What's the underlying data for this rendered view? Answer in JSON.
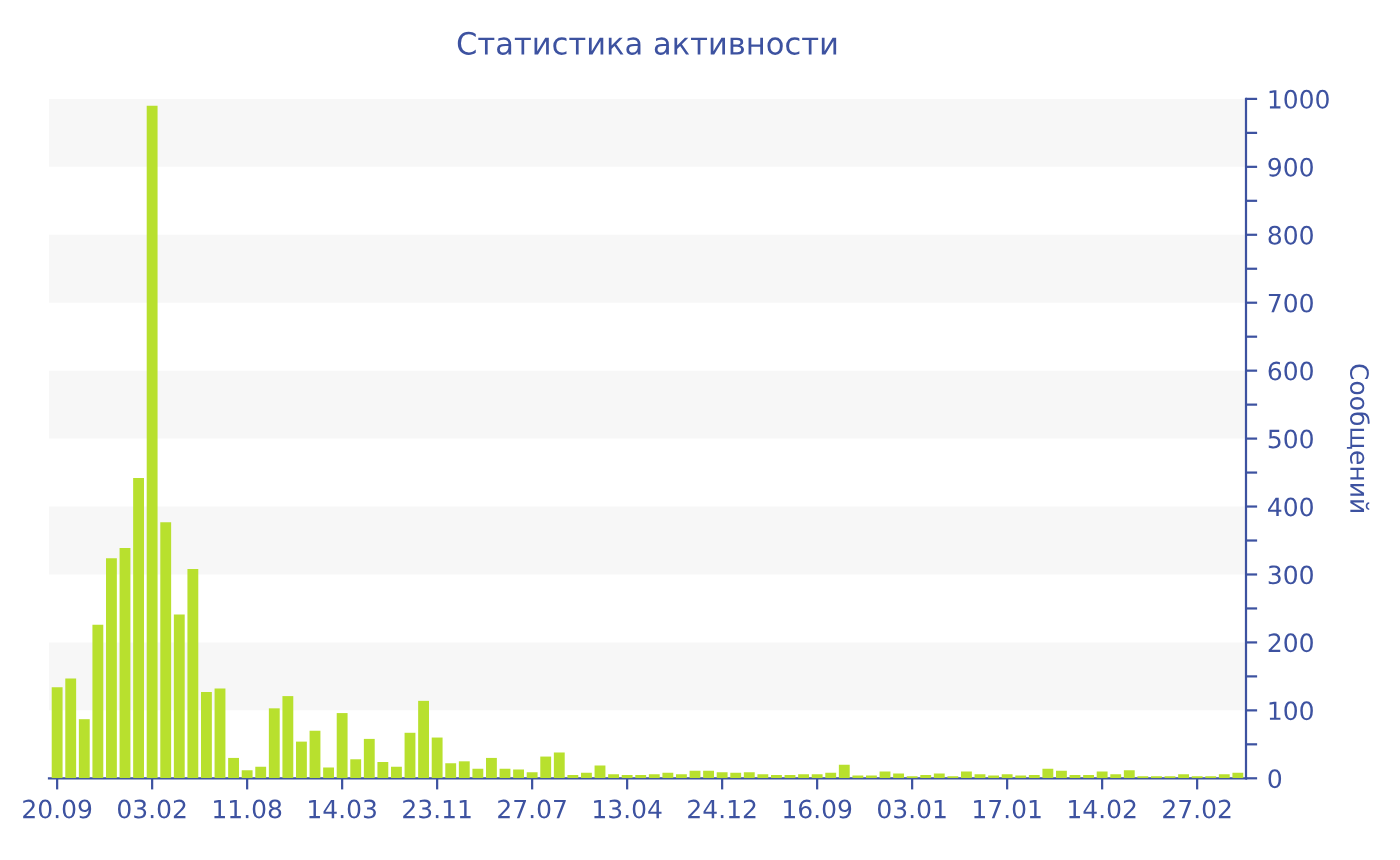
{
  "chart_data": {
    "type": "bar",
    "title": "Статистика активности",
    "ylabel": "Сообщений",
    "categories": [
      "20.09",
      null,
      null,
      null,
      null,
      null,
      null,
      "03.02",
      null,
      null,
      null,
      null,
      null,
      null,
      "11.08",
      null,
      null,
      null,
      null,
      null,
      null,
      "14.03",
      null,
      null,
      null,
      null,
      null,
      null,
      "23.11",
      null,
      null,
      null,
      null,
      null,
      null,
      "27.07",
      null,
      null,
      null,
      null,
      null,
      null,
      "13.04",
      null,
      null,
      null,
      null,
      null,
      null,
      "24.12",
      null,
      null,
      null,
      null,
      null,
      null,
      "16.09",
      null,
      null,
      null,
      null,
      null,
      null,
      "03.01",
      null,
      null,
      null,
      null,
      null,
      null,
      "17.01",
      null,
      null,
      null,
      null,
      null,
      null,
      "14.02",
      null,
      null,
      null,
      null,
      null,
      null,
      "27.02",
      null,
      null,
      null
    ],
    "values": [
      134,
      147,
      87,
      226,
      324,
      339,
      442,
      990,
      377,
      241,
      308,
      127,
      132,
      30,
      12,
      17,
      103,
      121,
      54,
      70,
      16,
      96,
      28,
      58,
      24,
      17,
      67,
      114,
      60,
      22,
      25,
      14,
      30,
      14,
      13,
      9,
      32,
      38,
      5,
      8,
      19,
      6,
      5,
      5,
      6,
      8,
      6,
      11,
      11,
      9,
      8,
      9,
      6,
      5,
      5,
      6,
      6,
      8,
      20,
      4,
      4,
      10,
      7,
      3,
      5,
      7,
      3,
      10,
      6,
      4,
      6,
      4,
      5,
      14,
      11,
      5,
      5,
      10,
      6,
      12,
      3,
      3,
      3,
      6,
      3,
      3,
      6,
      8
    ],
    "color": "#b8e02e",
    "ylim": [
      0,
      1000
    ],
    "yticks": [
      0,
      {
        "value": 50,
        "label": null
      },
      100,
      {
        "value": 150,
        "label": null
      },
      200,
      {
        "value": 250,
        "label": null
      },
      300,
      {
        "value": 350,
        "label": null
      },
      400,
      {
        "value": 450,
        "label": null
      },
      500,
      {
        "value": 550,
        "label": null
      },
      600,
      {
        "value": 650,
        "label": null
      },
      700,
      {
        "value": 750,
        "label": null
      },
      800,
      {
        "value": 850,
        "label": null
      },
      900,
      {
        "value": 950,
        "label": null
      },
      1000
    ],
    "bands": [
      {
        "axis": "y",
        "from": 100,
        "to": 200,
        "color": "#f7f7f7"
      },
      {
        "axis": "y",
        "from": 300,
        "to": 400,
        "color": "#f7f7f7"
      },
      {
        "axis": "y",
        "from": 500,
        "to": 600,
        "color": "#f7f7f7"
      },
      {
        "axis": "y",
        "from": 700,
        "to": 800,
        "color": "#f7f7f7"
      },
      {
        "axis": "y",
        "from": 900,
        "to": 1000,
        "color": "#f7f7f7"
      }
    ],
    "grid": false,
    "legend": false
  }
}
